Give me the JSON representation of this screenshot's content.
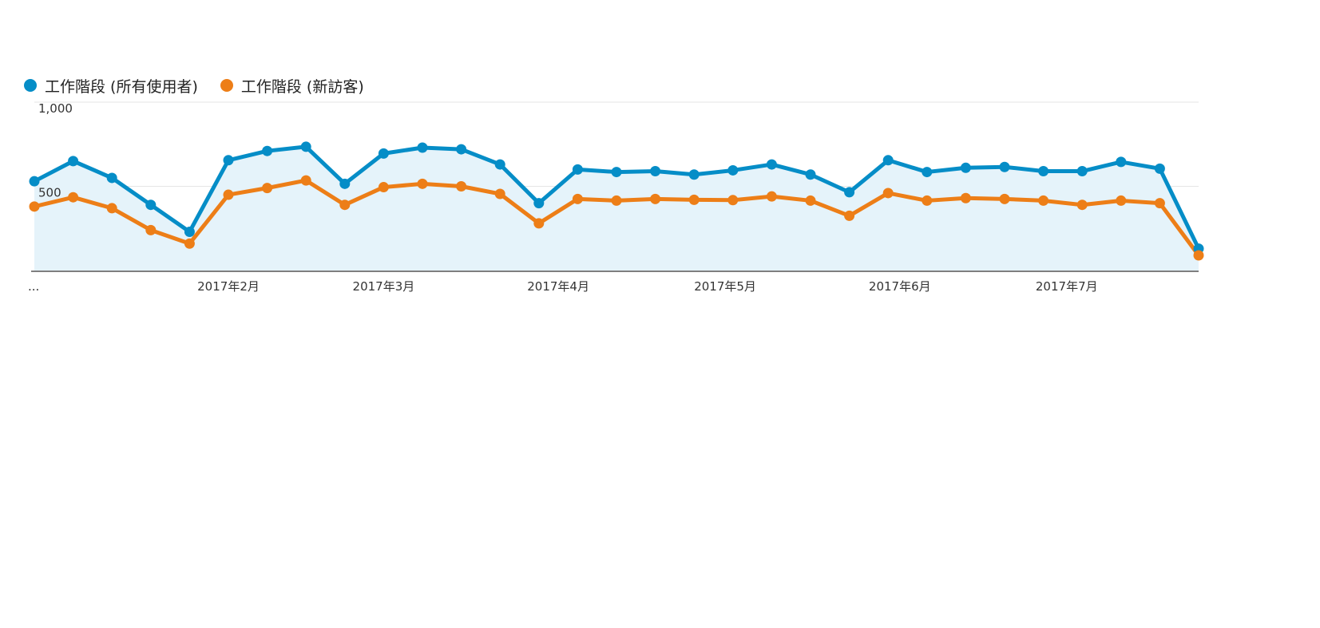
{
  "chart_data": {
    "type": "line",
    "legend_position": "top-left",
    "grid": true,
    "ylim": [
      0,
      1000
    ],
    "y_ticks": [
      {
        "value": 500,
        "label": "500"
      },
      {
        "value": 1000,
        "label": "1,000"
      }
    ],
    "x_tick_labels": [
      "...",
      "2017年2月",
      "2017年3月",
      "2017年4月",
      "2017年5月",
      "2017年6月",
      "2017年7月"
    ],
    "series": [
      {
        "name": "工作階段 (所有使用者)",
        "color": "#058dc7",
        "area": true,
        "values": [
          530,
          650,
          550,
          390,
          230,
          655,
          710,
          735,
          515,
          695,
          730,
          720,
          630,
          400,
          600,
          585,
          590,
          570,
          595,
          630,
          570,
          465,
          655,
          585,
          610,
          615,
          590,
          590,
          645,
          605,
          130
        ]
      },
      {
        "name": "工作階段 (新訪客)",
        "color": "#ed7e17",
        "area": false,
        "values": [
          380,
          435,
          370,
          240,
          160,
          450,
          490,
          535,
          390,
          495,
          515,
          500,
          455,
          280,
          425,
          415,
          425,
          420,
          418,
          440,
          415,
          325,
          460,
          415,
          430,
          425,
          415,
          390,
          415,
          400,
          90
        ]
      }
    ]
  }
}
